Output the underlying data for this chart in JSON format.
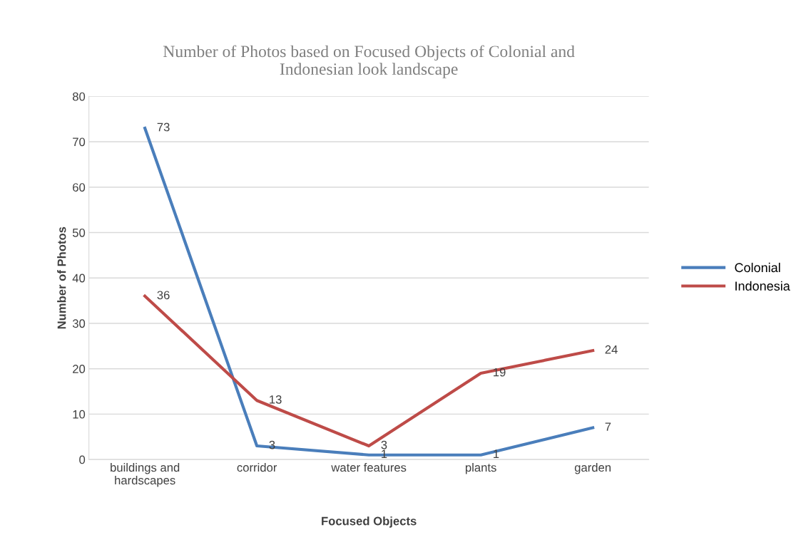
{
  "chart_data": {
    "type": "line",
    "title": "Number of Photos based on Focused Objects of Colonial and\nIndonesian look landscape",
    "xlabel": "Focused Objects",
    "ylabel": "Number of Photos",
    "categories": [
      "buildings and\nhardscapes",
      "corridor",
      "water features",
      "plants",
      "garden"
    ],
    "series": [
      {
        "name": "Colonial",
        "color": "#4a7ebb",
        "values": [
          73,
          3,
          1,
          1,
          7
        ]
      },
      {
        "name": "Indonesia",
        "color": "#be4b48",
        "values": [
          36,
          13,
          3,
          19,
          24
        ]
      }
    ],
    "ylim": [
      0,
      80
    ],
    "yticks": [
      0,
      10,
      20,
      30,
      40,
      50,
      60,
      70,
      80
    ],
    "grid": "y",
    "legend": "right",
    "data_labels": true,
    "marker": "none",
    "line_style": "solid"
  }
}
